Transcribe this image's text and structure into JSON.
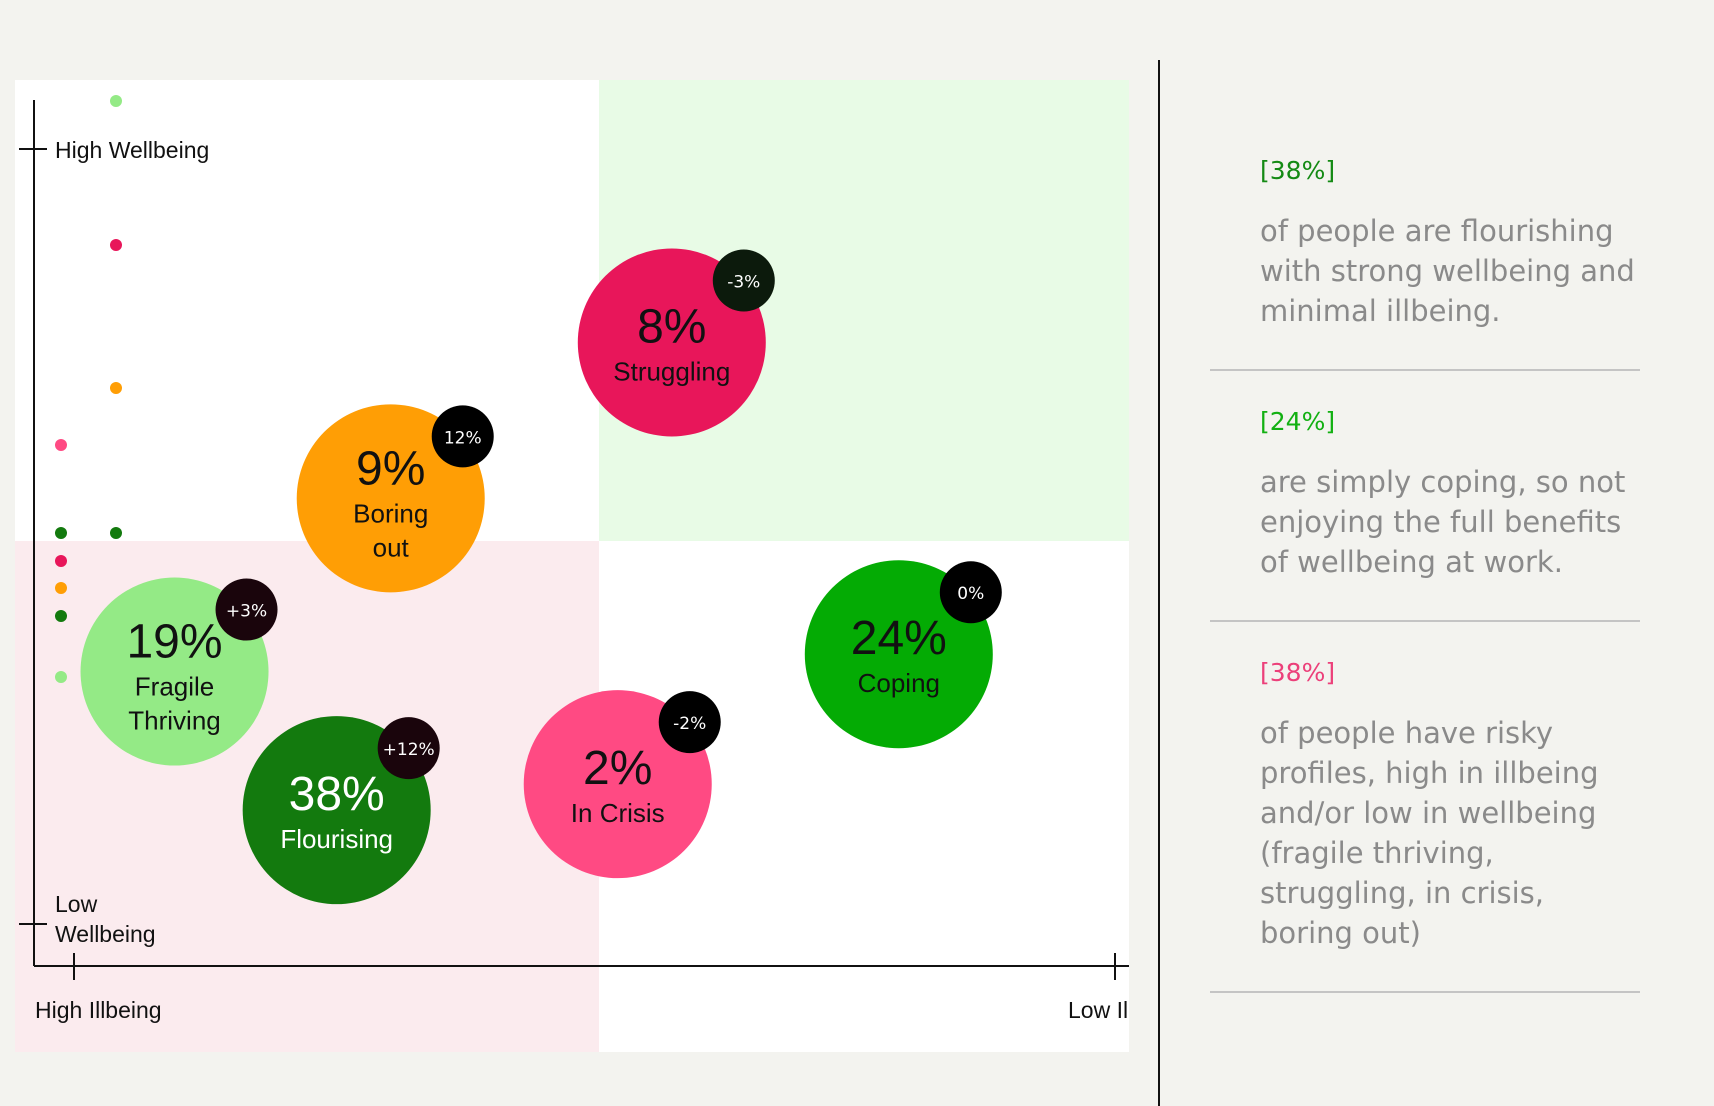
{
  "chart_data": {
    "type": "scatter",
    "xlabel_left": "High Illbeing",
    "xlabel_right": "Low Illbeing",
    "ylabel_top": "High Wellbeing",
    "ylabel_bottom": "Low\nWellbeing",
    "quadrant_colors": {
      "top_left": "#ffffff",
      "top_right": "#e8fbe6",
      "bottom_left": "#fbebee",
      "bottom_right": "#ffffff"
    },
    "bubbles": [
      {
        "value": "8%",
        "label": "Struggling",
        "change": "-3%",
        "color": "#e8165a",
        "text_color": "#111111",
        "x": 0.59,
        "y": 0.72
      },
      {
        "value": "9%",
        "label": "Boring\nout",
        "change": "12%",
        "color": "#ff9e05",
        "text_color": "#111111",
        "x": 0.33,
        "y": 0.54
      },
      {
        "value": "19%",
        "label": "Fragile\nThriving",
        "change": "+3%",
        "color": "#94ea86",
        "text_color": "#111111",
        "x": 0.13,
        "y": 0.34
      },
      {
        "value": "24%",
        "label": "Coping",
        "change": "0%",
        "color": "#04ab04",
        "text_color": "#111111",
        "x": 0.8,
        "y": 0.36
      },
      {
        "value": "2%",
        "label": "In Crisis",
        "change": "-2%",
        "color": "#ff4a83",
        "text_color": "#111111",
        "x": 0.54,
        "y": 0.21
      },
      {
        "value": "38%",
        "label": "Flourising",
        "change": "+12%",
        "color": "#137a0e",
        "text_color": "#ffffff",
        "x": 0.28,
        "y": 0.18
      }
    ],
    "marker_dots": [
      {
        "color": "#94ea86"
      },
      {
        "color": "#e8165a"
      },
      {
        "color": "#ff9e05"
      },
      {
        "color": "#ff4a83"
      },
      {
        "color": "#137a0e"
      },
      {
        "color": "#137a0e"
      },
      {
        "color": "#e8165a"
      },
      {
        "color": "#ff9e05"
      },
      {
        "color": "#137a0e"
      },
      {
        "color": "#94ea86"
      }
    ],
    "badge_colors": [
      "#0c1a0c",
      "#000000",
      "#1a050c",
      "#000000",
      "#000000",
      "#1a050c"
    ]
  },
  "stats": [
    {
      "value": "[38%]",
      "color": "#148a14",
      "description": "of people are flourishing with strong wellbeing and minimal illbeing."
    },
    {
      "value": "[24%]",
      "color": "#12b012",
      "description": "are simply coping, so not enjoying the full benefits of wellbeing at work."
    },
    {
      "value": "[38%]",
      "color": "#ec407a",
      "description": "of people have risky profiles, high in illbeing and/or low in wellbeing (fragile thriving, struggling, in crisis, boring out)"
    }
  ]
}
